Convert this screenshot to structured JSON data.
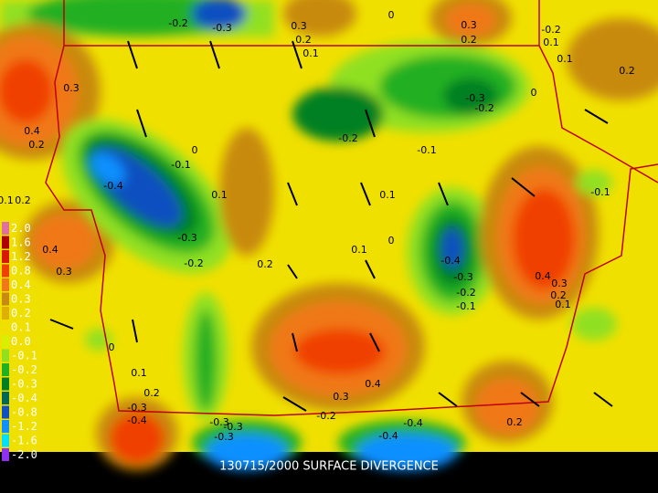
{
  "caption": "130715/2000 SURFACE DIVERGENCE",
  "legend": {
    "labels": [
      "2.0",
      "1.6",
      "1.2",
      "0.8",
      "0.4",
      "0.3",
      "0.2",
      "0.1",
      "0.0",
      "-0.1",
      "-0.2",
      "-0.3",
      "-0.4",
      "-0.8",
      "-1.2",
      "-1.6",
      "-2.0"
    ],
    "colors": [
      "#e070a0",
      "#b00000",
      "#d81800",
      "#f04000",
      "#f07818",
      "#c88a10",
      "#e0b000",
      "#f0e000",
      "#d8f000",
      "#90e020",
      "#20b020",
      "#008020",
      "#006858",
      "#1050c0",
      "#1090ff",
      "#00e0ff",
      "#9030f0"
    ]
  },
  "contour_labels": [
    "-0.2",
    "-0.3",
    "0.3",
    "0.2",
    "0.1",
    "0",
    "0.3",
    "0.2",
    "-0.2",
    "0.1",
    "0.1",
    "0.2",
    "0.3",
    "0.4",
    "0.2",
    "0",
    "-0.3",
    "-0.2",
    "-0.2",
    "-0.1",
    "0",
    "-0.1",
    "-0.4",
    "0.1",
    "0.1",
    "-0.1",
    "0.1",
    "0.2",
    "-0.3",
    "0",
    "0.1",
    "0.4",
    "-0.4",
    "-0.2",
    "0.2",
    "0.3",
    "-0.3",
    "0.4",
    "0.3",
    "0.2",
    "-0.2",
    "-0.1",
    "0.1",
    "0",
    "0.1",
    "0.4",
    "0.2",
    "0.3",
    "-0.3",
    "-0.4",
    "-0.2",
    "-0.3",
    "-0.3",
    "-0.4",
    "-0.4",
    "-0.3",
    "0.2"
  ]
}
